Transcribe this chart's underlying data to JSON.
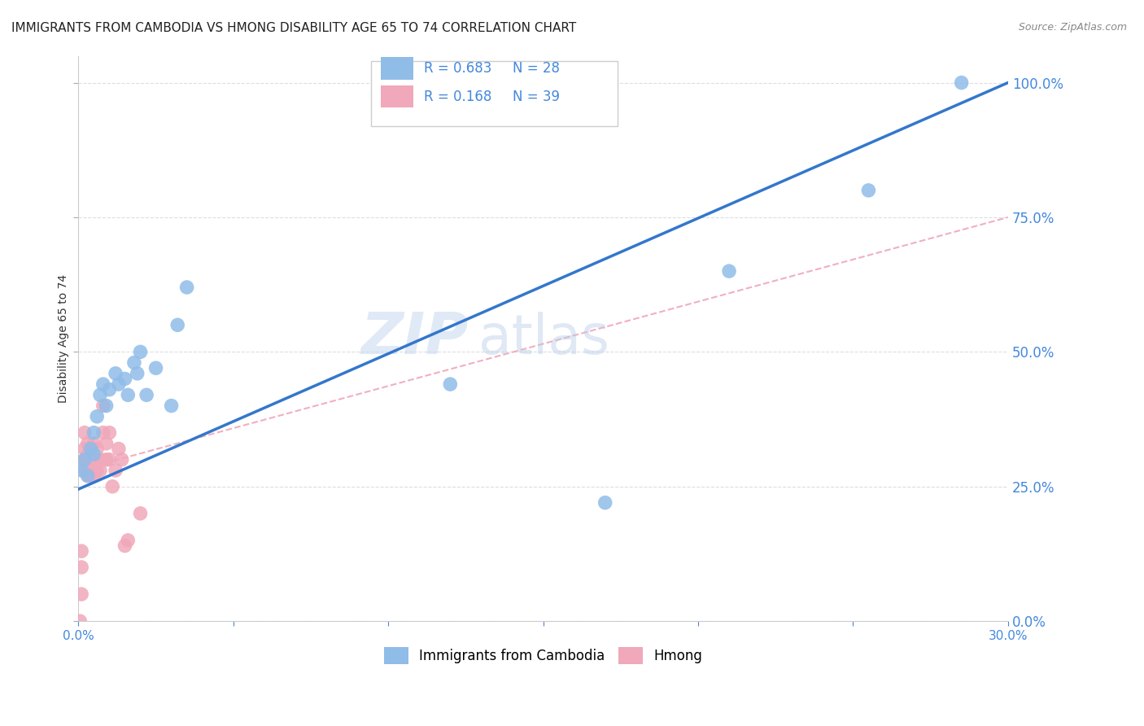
{
  "title": "IMMIGRANTS FROM CAMBODIA VS HMONG DISABILITY AGE 65 TO 74 CORRELATION CHART",
  "source": "Source: ZipAtlas.com",
  "ylabel": "Disability Age 65 to 74",
  "xlim": [
    0.0,
    0.3
  ],
  "ylim": [
    0.0,
    1.05
  ],
  "cambodia_color": "#90bce8",
  "hmong_color": "#f0a8ba",
  "cambodia_line_color": "#3377cc",
  "hmong_line_color": "#f0b0c0",
  "background_color": "#ffffff",
  "grid_color": "#dddddd",
  "watermark_zip": "ZIP",
  "watermark_atlas": "atlas",
  "cambodia_x": [
    0.001,
    0.002,
    0.003,
    0.004,
    0.005,
    0.005,
    0.006,
    0.007,
    0.008,
    0.009,
    0.01,
    0.012,
    0.013,
    0.015,
    0.016,
    0.018,
    0.019,
    0.02,
    0.022,
    0.025,
    0.03,
    0.032,
    0.035,
    0.12,
    0.17,
    0.21,
    0.255,
    0.285
  ],
  "cambodia_y": [
    0.28,
    0.3,
    0.27,
    0.32,
    0.31,
    0.35,
    0.38,
    0.42,
    0.44,
    0.4,
    0.43,
    0.46,
    0.44,
    0.45,
    0.42,
    0.48,
    0.46,
    0.5,
    0.42,
    0.47,
    0.4,
    0.55,
    0.62,
    0.44,
    0.22,
    0.65,
    0.8,
    1.0
  ],
  "hmong_x": [
    0.0005,
    0.001,
    0.001,
    0.001,
    0.002,
    0.002,
    0.002,
    0.002,
    0.003,
    0.003,
    0.003,
    0.003,
    0.003,
    0.004,
    0.004,
    0.004,
    0.004,
    0.005,
    0.005,
    0.005,
    0.005,
    0.006,
    0.006,
    0.006,
    0.007,
    0.007,
    0.008,
    0.008,
    0.009,
    0.009,
    0.01,
    0.01,
    0.011,
    0.012,
    0.013,
    0.014,
    0.015,
    0.016,
    0.02
  ],
  "hmong_y": [
    0.0,
    0.05,
    0.1,
    0.13,
    0.28,
    0.3,
    0.32,
    0.35,
    0.27,
    0.28,
    0.3,
    0.31,
    0.33,
    0.27,
    0.28,
    0.3,
    0.32,
    0.27,
    0.28,
    0.3,
    0.33,
    0.28,
    0.3,
    0.32,
    0.28,
    0.3,
    0.35,
    0.4,
    0.3,
    0.33,
    0.3,
    0.35,
    0.25,
    0.28,
    0.32,
    0.3,
    0.14,
    0.15,
    0.2
  ],
  "r_cambodia": 0.683,
  "n_cambodia": 28,
  "r_hmong": 0.168,
  "n_hmong": 39,
  "title_fontsize": 11,
  "axis_label_fontsize": 10,
  "tick_fontsize": 11,
  "legend_fontsize": 12,
  "watermark_fontsize": 52,
  "source_fontsize": 9,
  "cam_line_x0": 0.0,
  "cam_line_y0": 0.245,
  "cam_line_x1": 0.3,
  "cam_line_y1": 1.0,
  "hmong_line_x0": 0.0,
  "hmong_line_y0": 0.28,
  "hmong_line_x1": 0.3,
  "hmong_line_y1": 0.75
}
